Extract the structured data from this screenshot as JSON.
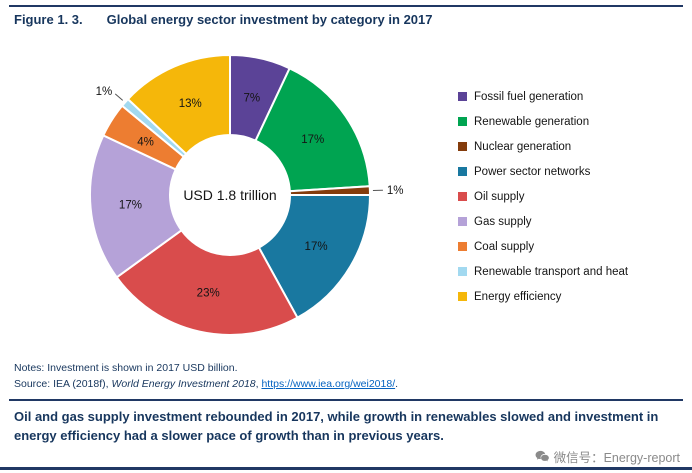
{
  "figure": {
    "label": "Figure 1. 3.",
    "title": "Global energy sector investment by category in 2017"
  },
  "chart_data": {
    "type": "pie",
    "donut": true,
    "title": "Global energy sector investment by category in 2017",
    "center_label": "USD 1.8 trillion",
    "start_angle_deg": 0,
    "direction": "clockwise",
    "legend_position": "right",
    "slices": [
      {
        "label": "Fossil fuel generation",
        "value": 7,
        "pct_label": "7%",
        "color": "#5b4397"
      },
      {
        "label": "Renewable generation",
        "value": 17,
        "pct_label": "17%",
        "color": "#00a451"
      },
      {
        "label": "Nuclear generation",
        "value": 1,
        "pct_label": "1%",
        "color": "#843c0c"
      },
      {
        "label": "Power sector networks",
        "value": 17,
        "pct_label": "17%",
        "color": "#1978a0"
      },
      {
        "label": "Oil supply",
        "value": 23,
        "pct_label": "23%",
        "color": "#d94c4c"
      },
      {
        "label": "Gas supply",
        "value": 17,
        "pct_label": "17%",
        "color": "#b5a2d8"
      },
      {
        "label": "Coal supply",
        "value": 4,
        "pct_label": "4%",
        "color": "#ed7d31"
      },
      {
        "label": "Renewable transport and heat",
        "value": 1,
        "pct_label": "1%",
        "color": "#a2d9f0"
      },
      {
        "label": "Energy efficiency",
        "value": 13,
        "pct_label": "13%",
        "color": "#f5b70a"
      }
    ]
  },
  "notes": "Notes: Investment is shown in 2017 USD billion.",
  "source": {
    "prefix": "Source: IEA (2018f), ",
    "work": "World Energy Investment 2018",
    "mid": ", ",
    "link_text": "https://www.iea.org/wei2018/",
    "suffix": "."
  },
  "summary": "Oil and gas supply investment rebounded in 2017, while growth in renewables slowed and investment in energy efficiency had a slower pace of growth than in previous years.",
  "watermark": {
    "icon": "wechat-icon",
    "text": "微信号：Energy-report"
  }
}
